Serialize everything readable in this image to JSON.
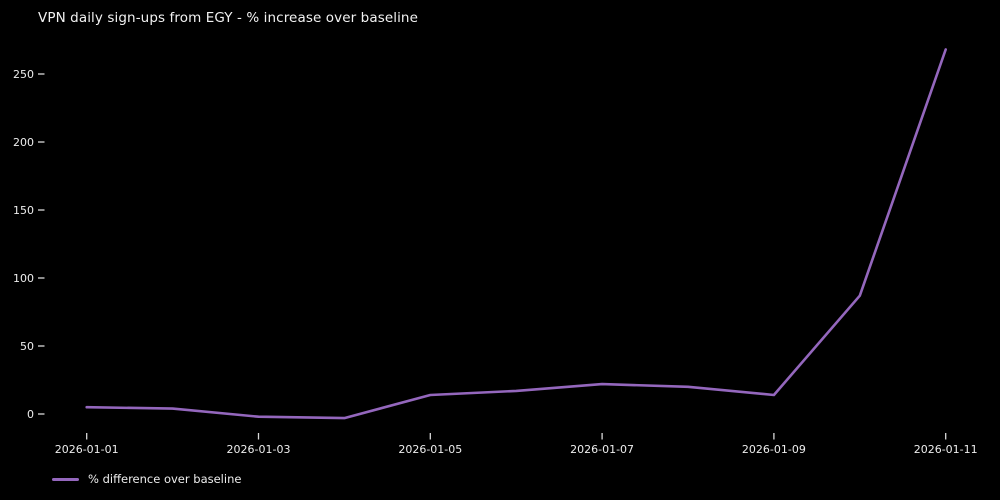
{
  "title": "VPN daily sign-ups from EGY - % increase over baseline",
  "legend": {
    "label": "% difference over baseline"
  },
  "colors": {
    "background": "#000000",
    "text": "#ededed",
    "tick": "#d9d9d9",
    "line": "#9467bd"
  },
  "chart_data": {
    "type": "line",
    "title": "VPN daily sign-ups from EGY - % increase over baseline",
    "x": [
      "2026-01-01",
      "2026-01-02",
      "2026-01-03",
      "2026-01-04",
      "2026-01-05",
      "2026-01-06",
      "2026-01-07",
      "2026-01-08",
      "2026-01-09",
      "2026-01-10",
      "2026-01-11"
    ],
    "series": [
      {
        "name": "% difference over baseline",
        "values": [
          5,
          4,
          -2,
          -3,
          14,
          17,
          22,
          20,
          14,
          87,
          268
        ]
      }
    ],
    "xticks": [
      "2026-01-01",
      "2026-01-03",
      "2026-01-05",
      "2026-01-07",
      "2026-01-09",
      "2026-01-11"
    ],
    "yticks": [
      0,
      50,
      100,
      150,
      200,
      250
    ],
    "ylim": [
      -13,
      282
    ],
    "xlabel": "",
    "ylabel": "",
    "grid": false,
    "legend_position": "lower-left",
    "line_color": "#9467bd",
    "background": "#000000"
  }
}
